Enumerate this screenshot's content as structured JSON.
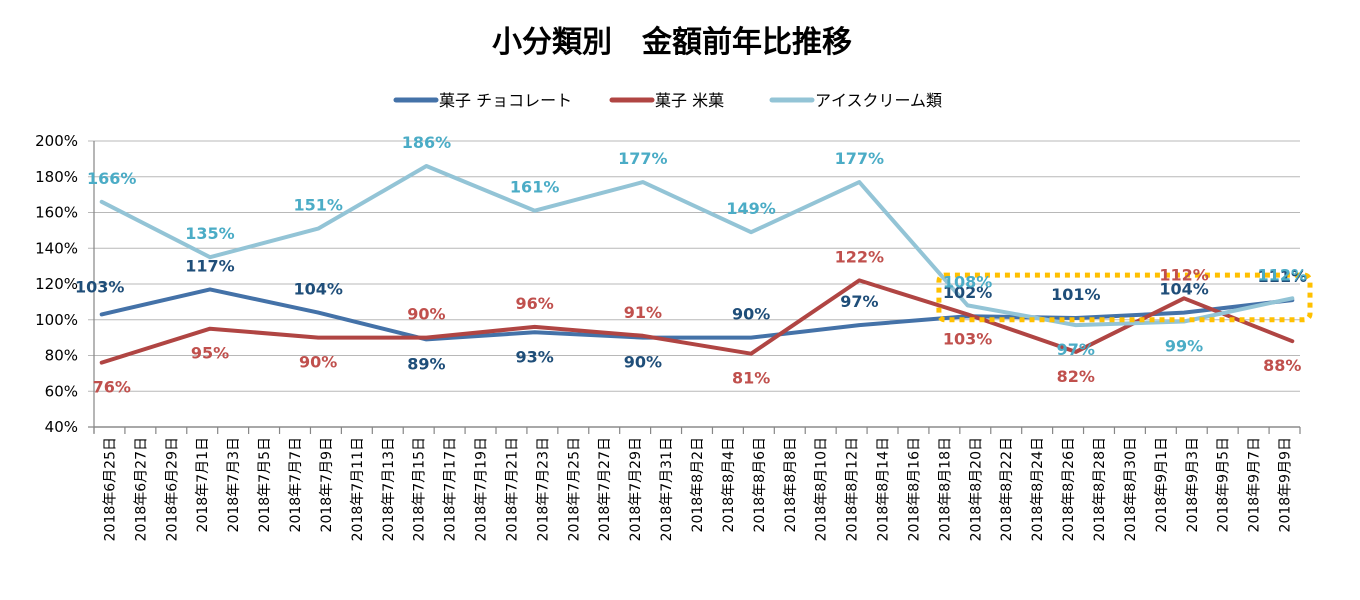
{
  "chart_data": {
    "type": "line",
    "title": "小分類別　金額前年比推移",
    "xlabel": "",
    "ylabel": "",
    "ylim": [
      0.4,
      2.0
    ],
    "yticks": [
      "200%",
      "180%",
      "160%",
      "140%",
      "120%",
      "100%",
      "80%",
      "60%",
      "40%"
    ],
    "ytick_values": [
      2.0,
      1.8,
      1.6,
      1.4,
      1.2,
      1.0,
      0.8,
      0.6,
      0.4
    ],
    "grid": true,
    "legend_position": "top",
    "x_axis_type": "date",
    "x_tick_interval_days": 2,
    "x_tick_labels": [
      "2018年6月25日",
      "2018年6月27日",
      "2018年6月29日",
      "2018年7月1日",
      "2018年7月3日",
      "2018年7月5日",
      "2018年7月7日",
      "2018年7月9日",
      "2018年7月11日",
      "2018年7月13日",
      "2018年7月15日",
      "2018年7月17日",
      "2018年7月19日",
      "2018年7月21日",
      "2018年7月23日",
      "2018年7月25日",
      "2018年7月27日",
      "2018年7月29日",
      "2018年7月31日",
      "2018年8月2日",
      "2018年8月4日",
      "2018年8月6日",
      "2018年8月8日",
      "2018年8月10日",
      "2018年8月12日",
      "2018年8月14日",
      "2018年8月16日",
      "2018年8月18日",
      "2018年8月20日",
      "2018年8月22日",
      "2018年8月24日",
      "2018年8月26日",
      "2018年8月28日",
      "2018年8月30日",
      "2018年9月1日",
      "2018年9月3日",
      "2018年9月5日",
      "2018年9月7日",
      "2018年9月9日"
    ],
    "x": [
      "2018-06-25",
      "2018-07-02",
      "2018-07-09",
      "2018-07-16",
      "2018-07-23",
      "2018-07-30",
      "2018-08-06",
      "2018-08-13",
      "2018-08-20",
      "2018-08-27",
      "2018-09-03",
      "2018-09-10"
    ],
    "x_day_offsets": [
      0,
      7,
      14,
      21,
      28,
      35,
      42,
      49,
      56,
      63,
      70,
      77
    ],
    "series": [
      {
        "name": "菓子 チョコレート",
        "color": "#4472A8",
        "label_color": "#1F4E79",
        "values": [
          1.03,
          1.17,
          1.04,
          0.89,
          0.93,
          0.9,
          0.9,
          0.97,
          1.02,
          1.01,
          1.04,
          1.11
        ],
        "labels": [
          "103%",
          "117%",
          "104%",
          "89%",
          "93%",
          "90%",
          "90%",
          "97%",
          "102%",
          "101%",
          "104%",
          "111%"
        ],
        "label_placement": [
          "above",
          "above",
          "above",
          "below",
          "below",
          "below",
          "above",
          "above",
          "above",
          "above",
          "above",
          "above"
        ]
      },
      {
        "name": "菓子 米菓",
        "color": "#B04543",
        "label_color": "#C0504D",
        "values": [
          0.76,
          0.95,
          0.9,
          0.9,
          0.96,
          0.91,
          0.81,
          1.22,
          1.03,
          0.82,
          1.12,
          0.88
        ],
        "labels": [
          "76%",
          "95%",
          "90%",
          "90%",
          "96%",
          "91%",
          "81%",
          "122%",
          "103%",
          "82%",
          "112%",
          "88%"
        ],
        "label_placement": [
          "below",
          "below",
          "below",
          "above",
          "above",
          "above",
          "below",
          "above",
          "below",
          "below",
          "above",
          "below"
        ]
      },
      {
        "name": "アイスクリーム類",
        "color": "#93C4D6",
        "label_color": "#4BACC6",
        "values": [
          1.66,
          1.35,
          1.51,
          1.86,
          1.61,
          1.77,
          1.49,
          1.77,
          1.08,
          0.97,
          0.99,
          1.12
        ],
        "labels": [
          "166%",
          "135%",
          "151%",
          "186%",
          "161%",
          "177%",
          "149%",
          "177%",
          "108%",
          "97%",
          "99%",
          "112%"
        ],
        "label_placement": [
          "above",
          "above",
          "above",
          "above",
          "above",
          "above",
          "above",
          "above",
          "above",
          "below",
          "below",
          "above"
        ]
      }
    ],
    "annotations": [
      {
        "type": "highlight-box",
        "style": "dotted",
        "color": "#FFC000",
        "x_range": [
          "2018-08-18",
          "2018-09-10"
        ],
        "y_range": [
          1.0,
          1.25
        ]
      }
    ]
  }
}
